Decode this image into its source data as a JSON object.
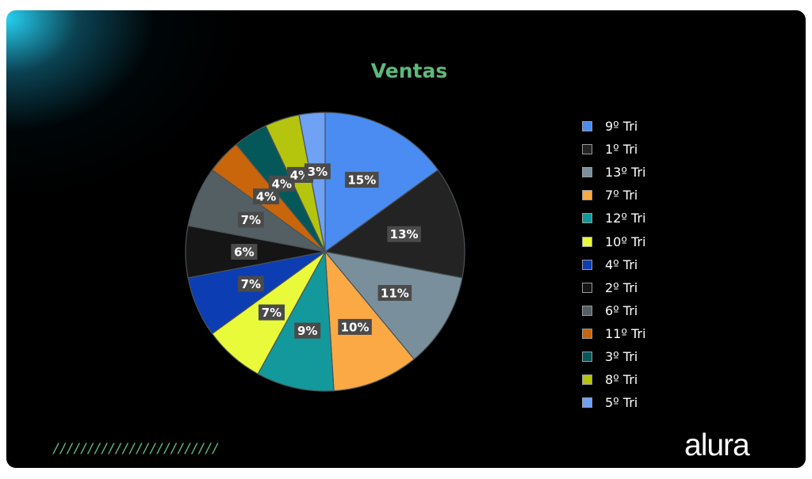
{
  "chart_data": {
    "type": "pie",
    "title": "Ventas",
    "unit": "%",
    "legend_position": "right",
    "slices": [
      {
        "label": "9º Tri",
        "value": 15,
        "color": "#4a8cf2"
      },
      {
        "label": "1º Tri",
        "value": 13,
        "color": "#232323"
      },
      {
        "label": "13º Tri",
        "value": 11,
        "color": "#7a8f9c"
      },
      {
        "label": "7º Tri",
        "value": 10,
        "color": "#fba945"
      },
      {
        "label": "12º Tri",
        "value": 9,
        "color": "#13999c"
      },
      {
        "label": "10º Tri",
        "value": 7,
        "color": "#e8fa3a"
      },
      {
        "label": "4º Tri",
        "value": 7,
        "color": "#0c3db3"
      },
      {
        "label": "2º Tri",
        "value": 6,
        "color": "#151515"
      },
      {
        "label": "6º Tri",
        "value": 7,
        "color": "#545f64"
      },
      {
        "label": "11º Tri",
        "value": 4,
        "color": "#c9650a"
      },
      {
        "label": "3º Tri",
        "value": 4,
        "color": "#05585a"
      },
      {
        "label": "8º Tri",
        "value": 4,
        "color": "#b5c40d"
      },
      {
        "label": "5º Tri",
        "value": 3,
        "color": "#6fa1f4"
      }
    ]
  },
  "decoration": {
    "stripes": "////////////////////////",
    "logo": "alura"
  },
  "colors": {
    "background": "#000000",
    "glow": "#28dcff",
    "title": "#5fb87b",
    "label_box": "#4a4a4a"
  }
}
